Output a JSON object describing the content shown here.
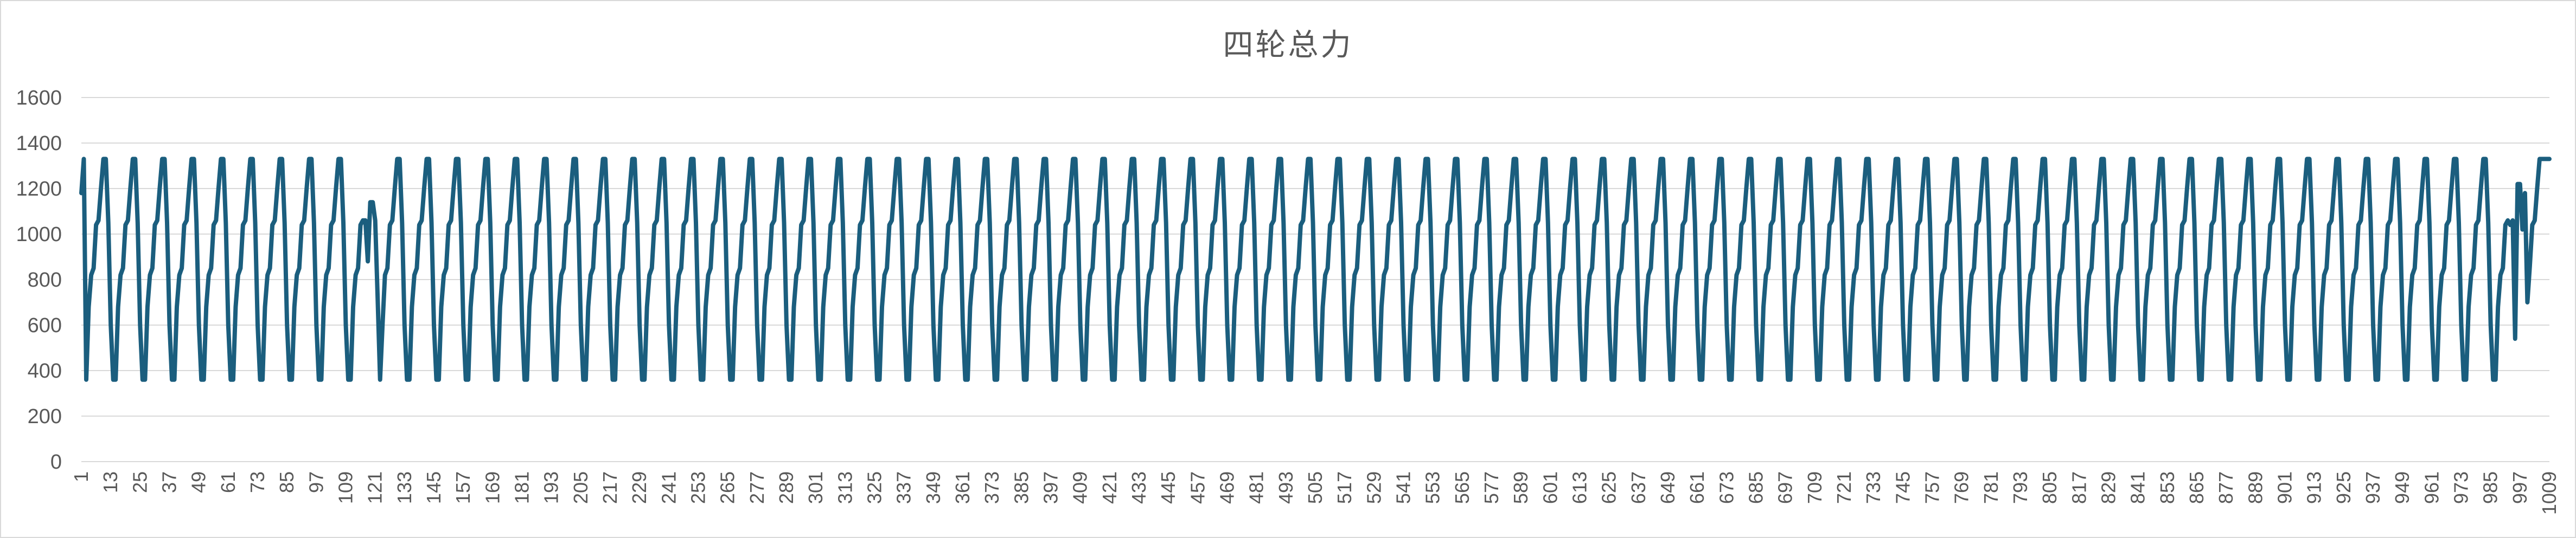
{
  "chart_data": {
    "type": "line",
    "title": "四轮总力",
    "xlabel": "",
    "ylabel": "",
    "ylim": [
      0,
      1600
    ],
    "yticks": [
      0,
      200,
      400,
      600,
      800,
      1000,
      1200,
      1400,
      1600
    ],
    "x_range": [
      1,
      1009
    ],
    "x_tick_labels": [
      "1",
      "13",
      "25",
      "37",
      "49",
      "61",
      "73",
      "85",
      "97",
      "109",
      "121",
      "133",
      "145",
      "157",
      "169",
      "181",
      "193",
      "205",
      "217",
      "229",
      "241",
      "253",
      "265",
      "277",
      "289",
      "301",
      "313",
      "325",
      "337",
      "349",
      "361",
      "373",
      "385",
      "397",
      "409",
      "421",
      "433",
      "445",
      "457",
      "469",
      "481",
      "493",
      "505",
      "517",
      "529",
      "541",
      "553",
      "565",
      "577",
      "589",
      "601",
      "613",
      "625",
      "637",
      "649",
      "661",
      "673",
      "685",
      "697",
      "709",
      "721",
      "733",
      "745",
      "757",
      "769",
      "781",
      "793",
      "805",
      "817",
      "829",
      "841",
      "853",
      "865",
      "877",
      "889",
      "901",
      "913",
      "925",
      "937",
      "949",
      "961",
      "973",
      "985",
      "997",
      "1009"
    ],
    "grid": true,
    "legend": "none",
    "line_color": "#1b5e7e",
    "period": 12,
    "cycle_values": [
      360,
      680,
      820,
      850,
      1040,
      1060,
      1200,
      1330,
      1330,
      1050,
      600,
      360
    ],
    "start_values": [
      1180,
      1330
    ],
    "series": [
      {
        "values_note_free": true
      }
    ]
  },
  "colors": {
    "line": "#1b5e7e",
    "grid": "#d9d9d9",
    "text": "#595959",
    "border": "#d9d9d9"
  }
}
